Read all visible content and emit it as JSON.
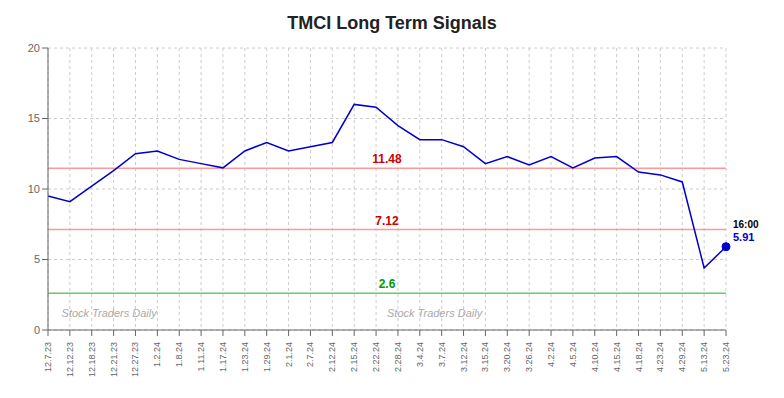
{
  "chart_data": {
    "type": "line",
    "title": "TMCI Long Term Signals",
    "categories": [
      "12.7.23",
      "12.12.23",
      "12.18.23",
      "12.21.23",
      "12.27.23",
      "1.2.24",
      "1.8.24",
      "1.11.24",
      "1.17.24",
      "1.23.24",
      "1.29.24",
      "2.1.24",
      "2.7.24",
      "2.12.24",
      "2.15.24",
      "2.22.24",
      "2.28.24",
      "3.4.24",
      "3.7.24",
      "3.12.24",
      "3.15.24",
      "3.20.24",
      "3.26.24",
      "4.2.24",
      "4.5.24",
      "4.10.24",
      "4.15.24",
      "4.18.24",
      "4.23.24",
      "4.29.24",
      "5.13.24",
      "5.23.24"
    ],
    "values": [
      9.5,
      9.1,
      10.2,
      11.3,
      12.5,
      12.7,
      12.1,
      11.8,
      11.5,
      12.7,
      13.3,
      12.7,
      13.0,
      13.3,
      16.0,
      15.8,
      14.5,
      13.5,
      13.5,
      13.0,
      11.8,
      12.3,
      11.7,
      12.3,
      11.5,
      12.2,
      12.3,
      11.2,
      11.0,
      10.5,
      4.4,
      5.91
    ],
    "color": "#0000cc",
    "marker": "circle",
    "ylim": [
      0,
      20
    ],
    "yticks": [
      0,
      5,
      10,
      15,
      20
    ],
    "grid": true,
    "hlines": [
      {
        "value": 11.48,
        "label": "11.48",
        "color": "#ff9999",
        "label_color": "#cc0000"
      },
      {
        "value": 7.12,
        "label": "7.12",
        "color": "#ff9999",
        "label_color": "#cc0000"
      },
      {
        "value": 2.6,
        "label": "2.6",
        "color": "#66cc66",
        "label_color": "#009900"
      }
    ],
    "end_annotations": [
      {
        "text": "16:00",
        "color": "#000000"
      },
      {
        "text": "5.91",
        "color": "#0000cc"
      }
    ],
    "watermark": "Stock Traders Daily"
  }
}
